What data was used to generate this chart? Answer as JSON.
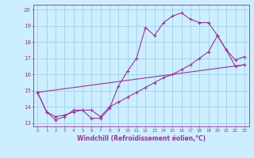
{
  "xlabel": "Windchill (Refroidissement éolien,°C)",
  "bg_color": "#cceeff",
  "grid_color": "#99ccdd",
  "line_color": "#993399",
  "xlim": [
    -0.5,
    23.5
  ],
  "ylim": [
    12.8,
    20.3
  ],
  "xticks": [
    0,
    1,
    2,
    3,
    4,
    5,
    6,
    7,
    8,
    9,
    10,
    11,
    12,
    13,
    14,
    15,
    16,
    17,
    18,
    19,
    20,
    21,
    22,
    23
  ],
  "yticks": [
    13,
    14,
    15,
    16,
    17,
    18,
    19,
    20
  ],
  "line1_x": [
    0,
    1,
    2,
    3,
    4,
    5,
    6,
    7,
    8,
    9,
    10,
    11,
    12,
    13,
    14,
    15,
    16,
    17,
    18,
    19,
    20,
    21,
    22,
    23
  ],
  "line1_y": [
    14.9,
    13.7,
    13.2,
    13.4,
    13.8,
    13.8,
    13.3,
    13.3,
    13.9,
    15.3,
    16.2,
    17.0,
    18.9,
    18.4,
    19.2,
    19.6,
    19.8,
    19.4,
    19.2,
    19.2,
    18.4,
    17.5,
    16.9,
    17.1
  ],
  "line2_x": [
    0,
    1,
    2,
    3,
    4,
    5,
    6,
    7,
    8,
    9,
    10,
    11,
    12,
    13,
    14,
    15,
    16,
    17,
    18,
    19,
    20,
    21,
    22,
    23
  ],
  "line2_y": [
    14.9,
    13.7,
    13.4,
    13.5,
    13.7,
    13.8,
    13.8,
    13.4,
    14.0,
    14.3,
    14.6,
    14.9,
    15.2,
    15.5,
    15.8,
    16.0,
    16.3,
    16.6,
    17.0,
    17.4,
    18.4,
    17.5,
    16.5,
    16.6
  ],
  "line3_x": [
    0,
    23
  ],
  "line3_y": [
    14.9,
    16.6
  ]
}
